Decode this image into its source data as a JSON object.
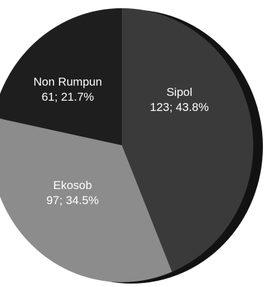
{
  "chart_data": {
    "type": "pie",
    "title": "",
    "start_angle_deg": 0,
    "direction": "clockwise",
    "slices": [
      {
        "name": "Sipol",
        "value": 123,
        "percent": "43.8%",
        "value_label": "123;  43.8%",
        "color": "#3a3a3a"
      },
      {
        "name": "Ekosob",
        "value": 97,
        "percent": "34.5%",
        "value_label": "97; 34.5%",
        "color": "#8c8c8c"
      },
      {
        "name": "Non Rumpun",
        "value": 61,
        "percent": "21.7%",
        "value_label": "61; 21.7%",
        "color": "#1e1e1e"
      }
    ],
    "edge_color": "#121212",
    "label_text_color": "#ffffff"
  }
}
